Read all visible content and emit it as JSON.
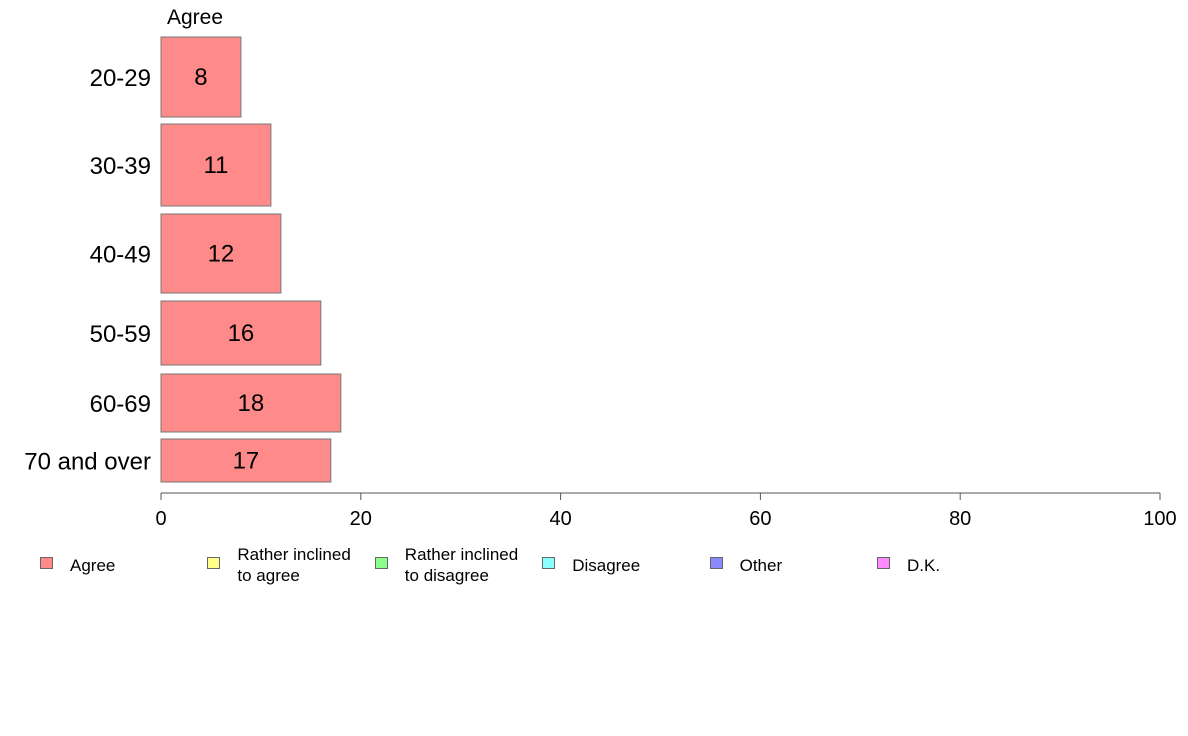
{
  "chart_data": {
    "type": "bar",
    "orientation": "horizontal",
    "series_header": "Agree",
    "categories": [
      "20-29",
      "30-39",
      "40-49",
      "50-59",
      "60-69",
      "70 and over"
    ],
    "series": [
      {
        "name": "Agree",
        "values": [
          8,
          11,
          12,
          16,
          18,
          17
        ],
        "color": "#ff8a8a"
      }
    ],
    "xlim": [
      0,
      100
    ],
    "xticks": [
      "0",
      "20",
      "40",
      "60",
      "80",
      "100"
    ],
    "legend_position": "bottom",
    "legend": [
      {
        "label": "Agree",
        "color": "#ff8a8a"
      },
      {
        "label": "Rather inclined\nto agree",
        "color": "#ffff8a"
      },
      {
        "label": "Rather inclined\nto disagree",
        "color": "#8aff8a"
      },
      {
        "label": "Disagree",
        "color": "#8affff"
      },
      {
        "label": "Other",
        "color": "#8a8aff"
      },
      {
        "label": "D.K.",
        "color": "#ff8aff"
      }
    ],
    "grid": false
  }
}
